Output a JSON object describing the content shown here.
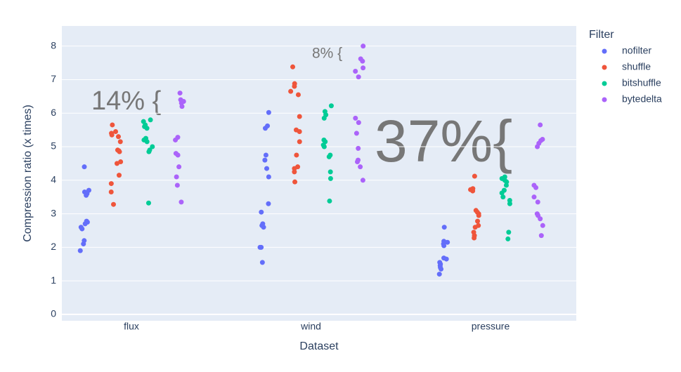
{
  "chart_data": {
    "type": "strip",
    "x_label": "Dataset",
    "y_label": "Compression ratio (x times)",
    "categories": [
      "flux",
      "wind",
      "pressure"
    ],
    "legend_title": "Filter",
    "legend_position": "right",
    "ylim": [
      -0.19,
      8.6
    ],
    "yticks": [
      0,
      1,
      2,
      3,
      4,
      5,
      6,
      7,
      8
    ],
    "grid": true,
    "series": [
      {
        "name": "nofilter",
        "color": "#636efa",
        "values": [
          [
            4.4,
            3.7,
            3.65,
            3.6,
            3.55,
            2.78,
            2.75,
            2.7,
            2.6,
            2.55,
            2.2,
            2.1,
            1.9
          ],
          [
            6.02,
            5.62,
            5.55,
            4.75,
            4.6,
            4.35,
            4.1,
            3.3,
            3.05,
            2.7,
            2.65,
            2.6,
            2.0,
            2.0,
            1.55
          ],
          [
            2.6,
            2.18,
            2.15,
            2.1,
            2.05,
            1.68,
            1.65,
            1.55,
            1.5,
            1.45,
            1.4,
            1.35,
            1.2
          ]
        ]
      },
      {
        "name": "shuffle",
        "color": "#ef553b",
        "values": [
          [
            5.65,
            5.45,
            5.4,
            5.35,
            5.3,
            5.15,
            4.9,
            4.88,
            4.85,
            4.55,
            4.5,
            4.15,
            3.9,
            3.65,
            3.28
          ],
          [
            7.38,
            6.88,
            6.8,
            6.65,
            6.55,
            5.9,
            5.5,
            5.45,
            5.15,
            4.75,
            4.4,
            4.35,
            4.25,
            3.95
          ],
          [
            4.12,
            3.75,
            3.72,
            3.68,
            3.1,
            3.05,
            3.0,
            2.95,
            2.78,
            2.65,
            2.6,
            2.45,
            2.35,
            2.28
          ]
        ]
      },
      {
        "name": "bitshuffle",
        "color": "#00cc96",
        "values": [
          [
            5.8,
            5.75,
            5.65,
            5.6,
            5.55,
            5.25,
            5.2,
            5.15,
            5.0,
            4.9,
            4.85,
            3.32
          ],
          [
            6.22,
            6.05,
            5.95,
            5.85,
            5.2,
            5.15,
            5.05,
            5.0,
            4.75,
            4.7,
            4.25,
            4.05,
            3.38
          ],
          [
            4.1,
            4.05,
            4.0,
            3.95,
            3.85,
            3.7,
            3.62,
            3.5,
            3.4,
            3.3,
            2.45,
            2.25
          ]
        ]
      },
      {
        "name": "bytedelta",
        "color": "#ab63fa",
        "values": [
          [
            6.6,
            6.4,
            6.35,
            6.3,
            6.2,
            5.28,
            5.2,
            4.8,
            4.75,
            4.4,
            4.1,
            3.85,
            3.35
          ],
          [
            8.0,
            7.62,
            7.55,
            7.35,
            7.25,
            7.08,
            5.85,
            5.72,
            5.4,
            4.95,
            4.6,
            4.55,
            4.4,
            4.0
          ],
          [
            5.65,
            5.22,
            5.18,
            5.1,
            5.0,
            3.85,
            3.78,
            3.5,
            3.35,
            3.0,
            2.95,
            2.85,
            2.65,
            2.35
          ]
        ]
      }
    ],
    "annotations": [
      "14% {",
      "8% {",
      "37%{"
    ]
  }
}
